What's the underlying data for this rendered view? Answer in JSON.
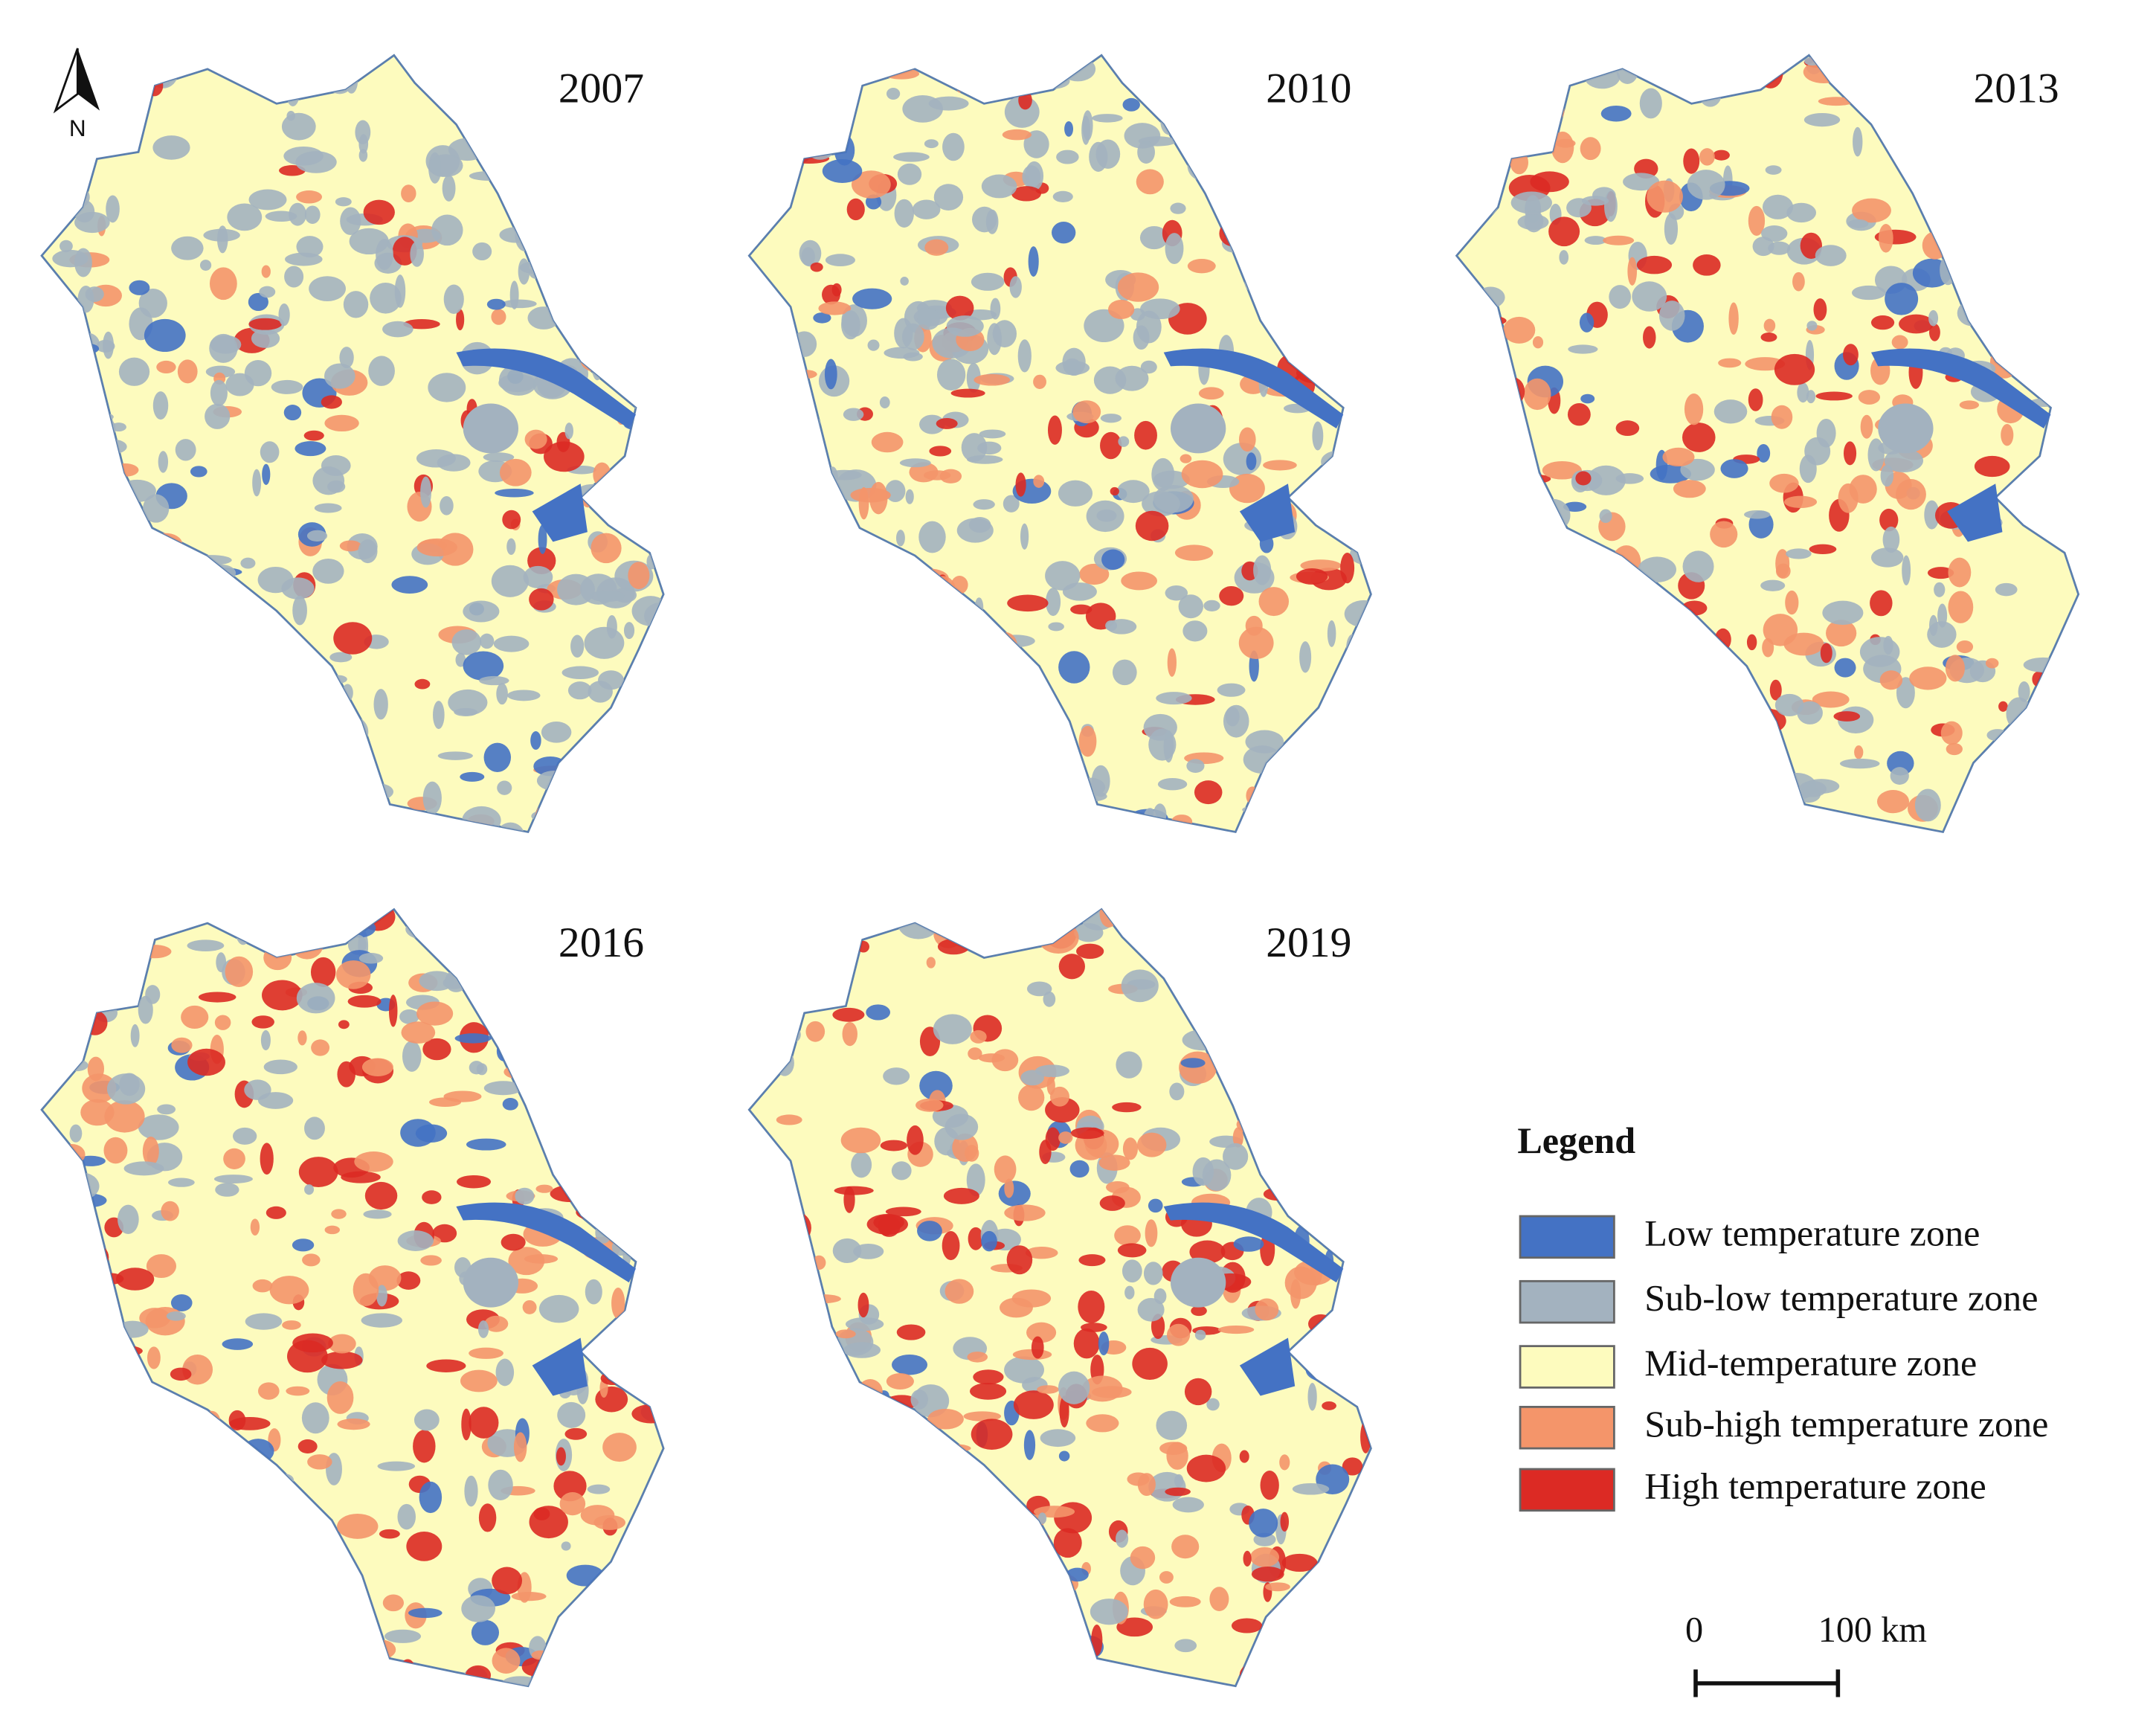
{
  "north_label": "N",
  "maps": [
    {
      "year": "2007"
    },
    {
      "year": "2010"
    },
    {
      "year": "2013"
    },
    {
      "year": "2016"
    },
    {
      "year": "2019"
    }
  ],
  "legend": {
    "title": "Legend",
    "items": [
      {
        "label": "Low temperature zone",
        "color": "#4472c4"
      },
      {
        "label": "Sub-low temperature zone",
        "color": "#a3b2bf"
      },
      {
        "label": "Mid-temperature zone",
        "color": "#fdfbbe"
      },
      {
        "label": "Sub-high temperature zone",
        "color": "#f4956a"
      },
      {
        "label": "High temperature zone",
        "color": "#dc2a24"
      }
    ]
  },
  "scale_bar": {
    "labels": [
      "0",
      "100 km"
    ]
  }
}
